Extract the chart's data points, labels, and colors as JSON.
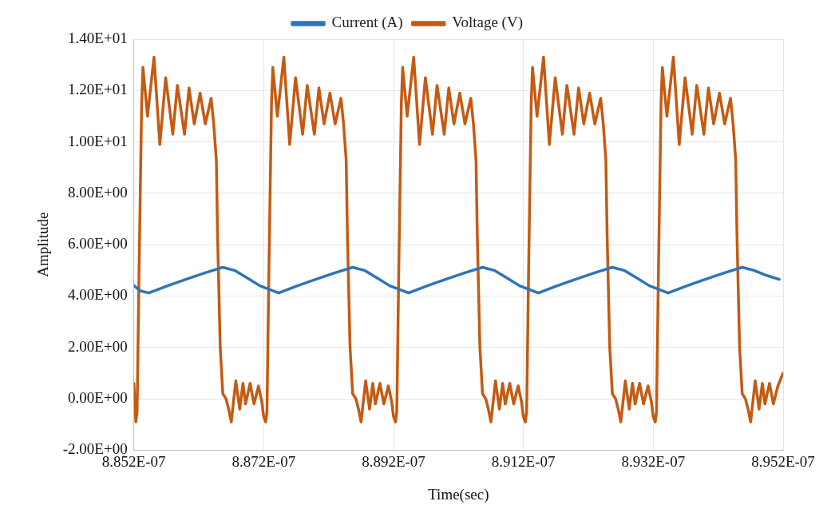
{
  "chart_data": {
    "type": "line",
    "xlabel": "Time(sec)",
    "ylabel": "Amplitude",
    "legend": "top",
    "grid": true,
    "marker": "none",
    "line_style": "solid",
    "xlim": [
      8.852e-07,
      8.952e-07
    ],
    "xticks": [
      {
        "value": 8.852e-07,
        "label": "8.852E-07"
      },
      {
        "value": 8.872e-07,
        "label": "8.872E-07"
      },
      {
        "value": 8.892e-07,
        "label": "8.892E-07"
      },
      {
        "value": 8.912e-07,
        "label": "8.912E-07"
      },
      {
        "value": 8.932e-07,
        "label": "8.932E-07"
      },
      {
        "value": 8.952e-07,
        "label": "8.952E-07"
      }
    ],
    "ylim": [
      -2,
      14
    ],
    "yticks": [
      {
        "value": -2,
        "label": "-2.00E+00"
      },
      {
        "value": 0,
        "label": "0.00E+00"
      },
      {
        "value": 2,
        "label": "2.00E+00"
      },
      {
        "value": 4,
        "label": "4.00E+00"
      },
      {
        "value": 6,
        "label": "6.00E+00"
      },
      {
        "value": 8,
        "label": "8.00E+00"
      },
      {
        "value": 10,
        "label": "1.00E+01"
      },
      {
        "value": 12,
        "label": "1.20E+01"
      },
      {
        "value": 14,
        "label": "1.40E+01"
      }
    ],
    "series": [
      {
        "name": "Current (A)",
        "color": "#2e75b6",
        "x": [
          8.852e-07,
          8.853e-07,
          8.8543e-07,
          8.8572e-07,
          8.86e-07,
          8.8629e-07,
          8.8657e-07,
          8.8675e-07,
          8.8695e-07,
          8.8714e-07,
          8.8743e-07,
          8.8772e-07,
          8.88e-07,
          8.8829e-07,
          8.8857e-07,
          8.8875e-07,
          8.8895e-07,
          8.8914e-07,
          8.8943e-07,
          8.8972e-07,
          8.9e-07,
          8.9029e-07,
          8.9057e-07,
          8.9075e-07,
          8.9095e-07,
          8.9114e-07,
          8.9143e-07,
          8.9172e-07,
          8.92e-07,
          8.9229e-07,
          8.9257e-07,
          8.9275e-07,
          8.9295e-07,
          8.9314e-07,
          8.9343e-07,
          8.9372e-07,
          8.94e-07,
          8.9429e-07,
          8.9457e-07,
          8.9475e-07,
          8.9495e-07,
          8.9514e-07
        ],
        "values": [
          4.41,
          4.2,
          4.12,
          4.4,
          4.65,
          4.9,
          5.12,
          5.0,
          4.7,
          4.4,
          4.12,
          4.4,
          4.65,
          4.9,
          5.12,
          5.0,
          4.7,
          4.4,
          4.12,
          4.4,
          4.65,
          4.9,
          5.12,
          5.0,
          4.7,
          4.4,
          4.12,
          4.4,
          4.65,
          4.9,
          5.12,
          5.0,
          4.7,
          4.4,
          4.12,
          4.4,
          4.65,
          4.9,
          5.12,
          5.0,
          4.8,
          4.65
        ]
      },
      {
        "name": "Voltage (V)",
        "color": "#c55a11",
        "x": [
          8.852e-07,
          8.8523e-07,
          8.8525e-07,
          8.8528e-07,
          8.8532e-07,
          8.8534e-07,
          8.8541e-07,
          8.8551e-07,
          8.856e-07,
          8.8569e-07,
          8.858e-07,
          8.8587e-07,
          8.8598e-07,
          8.8605e-07,
          8.8613e-07,
          8.8622e-07,
          8.863e-07,
          8.8639e-07,
          8.8643e-07,
          8.8647e-07,
          8.8649e-07,
          8.8653e-07,
          8.8657e-07,
          8.8662e-07,
          8.8666e-07,
          8.867e-07,
          8.8677e-07,
          8.8683e-07,
          8.8688e-07,
          8.8692e-07,
          8.8699e-07,
          8.8705e-07,
          8.8712e-07,
          8.8717e-07,
          8.872e-07,
          8.8723e-07,
          8.8725e-07,
          8.8728e-07,
          8.8732e-07,
          8.8734e-07,
          8.8741e-07,
          8.8751e-07,
          8.876e-07,
          8.8769e-07,
          8.878e-07,
          8.8787e-07,
          8.8798e-07,
          8.8805e-07,
          8.8813e-07,
          8.8822e-07,
          8.883e-07,
          8.8839e-07,
          8.8843e-07,
          8.8847e-07,
          8.8849e-07,
          8.8853e-07,
          8.8857e-07,
          8.8862e-07,
          8.8866e-07,
          8.887e-07,
          8.8877e-07,
          8.8883e-07,
          8.8888e-07,
          8.8892e-07,
          8.8899e-07,
          8.8905e-07,
          8.8912e-07,
          8.8917e-07,
          8.892e-07,
          8.8923e-07,
          8.8925e-07,
          8.8928e-07,
          8.8932e-07,
          8.8934e-07,
          8.8941e-07,
          8.8951e-07,
          8.896e-07,
          8.8969e-07,
          8.898e-07,
          8.8987e-07,
          8.8998e-07,
          8.9005e-07,
          8.9013e-07,
          8.9022e-07,
          8.903e-07,
          8.9039e-07,
          8.9043e-07,
          8.9047e-07,
          8.9049e-07,
          8.9053e-07,
          8.9057e-07,
          8.9062e-07,
          8.9066e-07,
          8.907e-07,
          8.9077e-07,
          8.9083e-07,
          8.9088e-07,
          8.9092e-07,
          8.9099e-07,
          8.9105e-07,
          8.9112e-07,
          8.9117e-07,
          8.912e-07,
          8.9123e-07,
          8.9125e-07,
          8.9128e-07,
          8.9132e-07,
          8.9134e-07,
          8.9141e-07,
          8.9151e-07,
          8.916e-07,
          8.9169e-07,
          8.918e-07,
          8.9187e-07,
          8.9198e-07,
          8.9205e-07,
          8.9213e-07,
          8.9222e-07,
          8.923e-07,
          8.9239e-07,
          8.9243e-07,
          8.9247e-07,
          8.9249e-07,
          8.9253e-07,
          8.9257e-07,
          8.9262e-07,
          8.9266e-07,
          8.927e-07,
          8.9277e-07,
          8.9283e-07,
          8.9288e-07,
          8.9292e-07,
          8.9299e-07,
          8.9305e-07,
          8.9312e-07,
          8.9317e-07,
          8.932e-07,
          8.9323e-07,
          8.9325e-07,
          8.9328e-07,
          8.9332e-07,
          8.9334e-07,
          8.9341e-07,
          8.9351e-07,
          8.936e-07,
          8.9369e-07,
          8.938e-07,
          8.9387e-07,
          8.9398e-07,
          8.9405e-07,
          8.9413e-07,
          8.9422e-07,
          8.943e-07,
          8.9439e-07,
          8.9443e-07,
          8.9447e-07,
          8.9449e-07,
          8.9453e-07,
          8.9457e-07,
          8.9462e-07,
          8.9466e-07,
          8.947e-07,
          8.9477e-07,
          8.9483e-07,
          8.9488e-07,
          8.9492e-07,
          8.9499e-07,
          8.9505e-07,
          8.9512e-07,
          8.952e-07
        ],
        "values": [
          0.6,
          -0.9,
          -0.5,
          5.0,
          11.5,
          12.9,
          11.0,
          13.3,
          9.9,
          12.5,
          10.3,
          12.2,
          10.3,
          12.1,
          10.7,
          11.9,
          10.7,
          11.7,
          10.7,
          9.3,
          6.3,
          2.0,
          0.2,
          0.0,
          -0.4,
          -0.9,
          0.7,
          -0.4,
          0.6,
          -0.2,
          0.6,
          -0.2,
          0.5,
          -0.1,
          -0.7,
          -0.9,
          -0.5,
          5.0,
          11.5,
          12.9,
          11.0,
          13.3,
          9.9,
          12.5,
          10.3,
          12.2,
          10.3,
          12.1,
          10.7,
          11.9,
          10.7,
          11.7,
          10.7,
          9.3,
          6.3,
          2.0,
          0.2,
          0.0,
          -0.4,
          -0.9,
          0.7,
          -0.4,
          0.6,
          -0.2,
          0.6,
          -0.2,
          0.5,
          -0.1,
          -0.7,
          -0.9,
          -0.5,
          5.0,
          11.5,
          12.9,
          11.0,
          13.3,
          9.9,
          12.5,
          10.3,
          12.2,
          10.3,
          12.1,
          10.7,
          11.9,
          10.7,
          11.7,
          10.7,
          9.3,
          6.3,
          2.0,
          0.2,
          0.0,
          -0.4,
          -0.9,
          0.7,
          -0.4,
          0.6,
          -0.2,
          0.6,
          -0.2,
          0.5,
          -0.1,
          -0.7,
          -0.9,
          -0.5,
          5.0,
          11.5,
          12.9,
          11.0,
          13.3,
          9.9,
          12.5,
          10.3,
          12.2,
          10.3,
          12.1,
          10.7,
          11.9,
          10.7,
          11.7,
          10.7,
          9.3,
          6.3,
          2.0,
          0.2,
          0.0,
          -0.4,
          -0.9,
          0.7,
          -0.4,
          0.6,
          -0.2,
          0.6,
          -0.2,
          0.5,
          -0.1,
          -0.7,
          -0.9,
          -0.5,
          5.0,
          11.5,
          12.9,
          11.0,
          13.3,
          9.9,
          12.5,
          10.3,
          12.2,
          10.3,
          12.1,
          10.7,
          11.9,
          10.7,
          11.7,
          10.7,
          9.3,
          6.3,
          2.0,
          0.2,
          0.0,
          -0.4,
          -0.9,
          0.7,
          -0.4,
          0.6,
          -0.2,
          0.6,
          -0.2,
          0.5,
          1.0
        ]
      }
    ]
  }
}
